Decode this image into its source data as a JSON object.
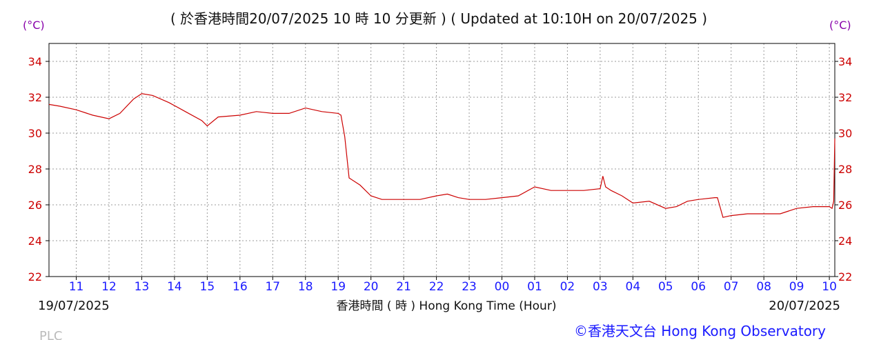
{
  "header": {
    "update_text": "( 於香港時間20/07/2025 10 時 10 分更新 ) ( Updated at 10:10H on 20/07/2025 )",
    "unit_left": "(°C)",
    "unit_right": "(°C)"
  },
  "footer": {
    "date_left": "19/07/2025",
    "xlabel": "香港時間 ( 時 )  Hong Kong Time (Hour)",
    "date_right": "20/07/2025",
    "copyright": "©香港天文台 Hong Kong Observatory",
    "station": "PLC"
  },
  "colors": {
    "line": "#cc0000",
    "ytick": "#cc0000",
    "xtick": "#1a1aff",
    "unit": "#8800aa",
    "grid": "#9a9a9a",
    "copyright": "#1a1aff",
    "station": "#bbbbbb"
  },
  "chart_data": {
    "type": "line",
    "title": "( 於香港時間20/07/2025 10 時 10 分更新 ) ( Updated at 10:10H on 20/07/2025 )",
    "xlabel": "香港時間 ( 時 )  Hong Kong Time (Hour)",
    "ylabel": "(°C)",
    "ylim": [
      22,
      35
    ],
    "xlim": [
      "19/07/2025 10:10",
      "20/07/2025 10:10"
    ],
    "grid": true,
    "xticks": [
      "11",
      "12",
      "13",
      "14",
      "15",
      "16",
      "17",
      "18",
      "19",
      "20",
      "21",
      "22",
      "23",
      "00",
      "01",
      "02",
      "03",
      "04",
      "05",
      "06",
      "07",
      "08",
      "09",
      "10"
    ],
    "yticks": [
      22,
      24,
      26,
      28,
      30,
      32,
      34
    ],
    "series": [
      {
        "x": [
          "19/07/2025 10:10",
          "19/07/2025 10:30",
          "19/07/2025 11:00",
          "19/07/2025 11:30",
          "19/07/2025 12:00",
          "19/07/2025 12:20",
          "19/07/2025 12:45",
          "19/07/2025 13:00",
          "19/07/2025 13:20",
          "19/07/2025 13:50",
          "19/07/2025 14:20",
          "19/07/2025 14:50",
          "19/07/2025 15:00",
          "19/07/2025 15:20",
          "19/07/2025 16:00",
          "19/07/2025 16:30",
          "19/07/2025 17:00",
          "19/07/2025 17:30",
          "19/07/2025 18:00",
          "19/07/2025 18:30",
          "19/07/2025 19:00",
          "19/07/2025 19:05",
          "19/07/2025 19:12",
          "19/07/2025 19:20",
          "19/07/2025 19:40",
          "19/07/2025 20:00",
          "19/07/2025 20:20",
          "19/07/2025 20:40",
          "19/07/2025 21:00",
          "19/07/2025 21:30",
          "19/07/2025 22:00",
          "19/07/2025 22:20",
          "19/07/2025 22:40",
          "19/07/2025 23:00",
          "19/07/2025 23:30",
          "20/07/2025 00:00",
          "20/07/2025 00:30",
          "20/07/2025 01:00",
          "20/07/2025 01:30",
          "20/07/2025 02:00",
          "20/07/2025 02:30",
          "20/07/2025 03:00",
          "20/07/2025 03:05",
          "20/07/2025 03:10",
          "20/07/2025 03:20",
          "20/07/2025 03:40",
          "20/07/2025 04:00",
          "20/07/2025 04:30",
          "20/07/2025 05:00",
          "20/07/2025 05:20",
          "20/07/2025 05:40",
          "20/07/2025 06:00",
          "20/07/2025 06:30",
          "20/07/2025 06:35",
          "20/07/2025 06:45",
          "20/07/2025 07:00",
          "20/07/2025 07:30",
          "20/07/2025 08:00",
          "20/07/2025 08:30",
          "20/07/2025 09:00",
          "20/07/2025 09:30",
          "20/07/2025 10:00",
          "20/07/2025 10:05",
          "20/07/2025 10:08",
          "20/07/2025 10:10"
        ],
        "values": [
          31.6,
          31.5,
          31.3,
          31.0,
          30.8,
          31.1,
          31.9,
          32.2,
          32.1,
          31.7,
          31.2,
          30.7,
          30.4,
          30.9,
          31.0,
          31.2,
          31.1,
          31.1,
          31.4,
          31.2,
          31.1,
          31.0,
          29.8,
          27.5,
          27.1,
          26.5,
          26.3,
          26.3,
          26.3,
          26.3,
          26.5,
          26.6,
          26.4,
          26.3,
          26.3,
          26.4,
          26.5,
          27.0,
          26.8,
          26.8,
          26.8,
          26.9,
          27.6,
          27.0,
          26.8,
          26.5,
          26.1,
          26.2,
          25.8,
          25.9,
          26.2,
          26.3,
          26.4,
          26.4,
          25.3,
          25.4,
          25.5,
          25.5,
          25.5,
          25.8,
          25.9,
          25.9,
          25.8,
          26.2,
          29.7
        ]
      }
    ]
  }
}
